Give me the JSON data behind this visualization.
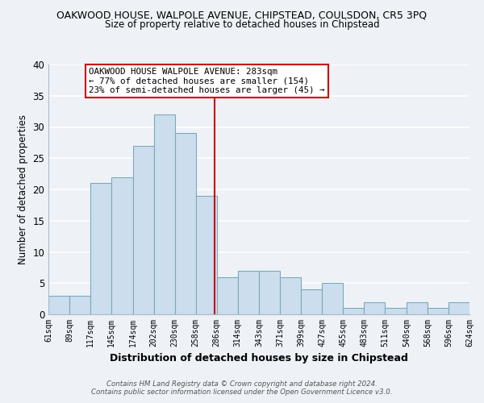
{
  "title": "OAKWOOD HOUSE, WALPOLE AVENUE, CHIPSTEAD, COULSDON, CR5 3PQ",
  "subtitle": "Size of property relative to detached houses in Chipstead",
  "xlabel": "Distribution of detached houses by size in Chipstead",
  "ylabel": "Number of detached properties",
  "bar_color": "#ccdded",
  "bar_edge_color": "#7aaabb",
  "bins": [
    61,
    89,
    117,
    145,
    174,
    202,
    230,
    258,
    286,
    314,
    343,
    371,
    399,
    427,
    455,
    483,
    511,
    540,
    568,
    596,
    624
  ],
  "counts": [
    3,
    3,
    21,
    22,
    27,
    32,
    29,
    19,
    6,
    7,
    7,
    6,
    4,
    5,
    1,
    2,
    1,
    2,
    1,
    2
  ],
  "tick_labels": [
    "61sqm",
    "89sqm",
    "117sqm",
    "145sqm",
    "174sqm",
    "202sqm",
    "230sqm",
    "258sqm",
    "286sqm",
    "314sqm",
    "343sqm",
    "371sqm",
    "399sqm",
    "427sqm",
    "455sqm",
    "483sqm",
    "511sqm",
    "540sqm",
    "568sqm",
    "596sqm",
    "624sqm"
  ],
  "ylim": [
    0,
    40
  ],
  "yticks": [
    0,
    5,
    10,
    15,
    20,
    25,
    30,
    35,
    40
  ],
  "property_line_x": 283,
  "property_line_color": "#cc0000",
  "annotation_title": "OAKWOOD HOUSE WALPOLE AVENUE: 283sqm",
  "annotation_line1": "← 77% of detached houses are smaller (154)",
  "annotation_line2": "23% of semi-detached houses are larger (45) →",
  "annotation_box_color": "#ffffff",
  "annotation_box_edge": "#cc0000",
  "footer1": "Contains HM Land Registry data © Crown copyright and database right 2024.",
  "footer2": "Contains public sector information licensed under the Open Government Licence v3.0.",
  "bg_color": "#eef2f7",
  "grid_color": "#ffffff"
}
